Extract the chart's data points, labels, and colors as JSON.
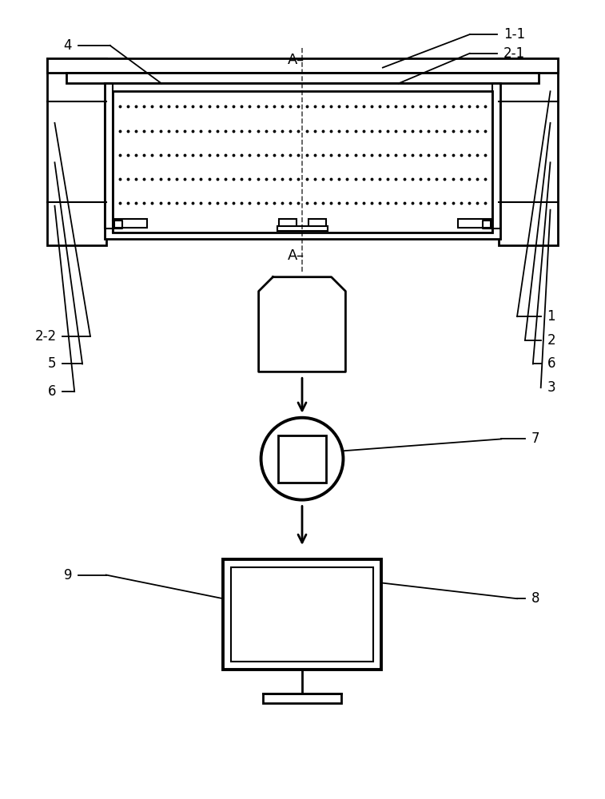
{
  "bg_color": "#ffffff",
  "line_color": "#000000",
  "label_fontsize": 12,
  "figsize": [
    7.57,
    10.0
  ],
  "dpi": 100
}
